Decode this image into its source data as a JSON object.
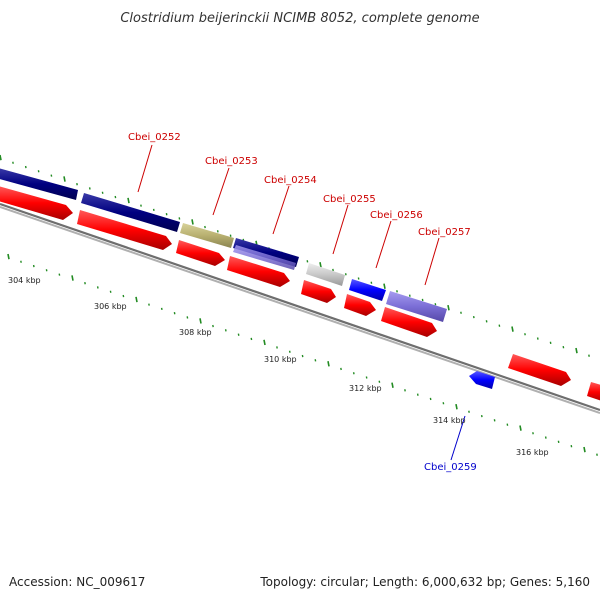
{
  "title": "Clostridium beijerinckii NCIMB 8052, complete genome",
  "footer": {
    "accession": "Accession: NC_009617",
    "topology": "Topology: circular; Length: 6,000,632 bp; Genes: 5,160"
  },
  "gene_labels": {
    "cbei_0252": "Cbei_0252",
    "cbei_0253": "Cbei_0253",
    "cbei_0254": "Cbei_0254",
    "cbei_0255": "Cbei_0255",
    "cbei_0256": "Cbei_0256",
    "cbei_0257": "Cbei_0257",
    "cbei_0259": "Cbei_0259"
  },
  "kbp_labels": {
    "k304": "304 kbp",
    "k306": "306 kbp",
    "k308": "308 kbp",
    "k310": "310 kbp",
    "k312": "312 kbp",
    "k314": "314 kbp",
    "k316": "316 kbp"
  },
  "colors": {
    "cds_red": "#ff0000",
    "cds_navy": "#000080",
    "cds_olive": "#b8b070",
    "cds_lavender": "#7b6ed6",
    "cds_gray": "#c8c8c8",
    "cds_blue": "#0000ff",
    "backbone": "#8a8a8a",
    "ticks": "#228b22"
  }
}
